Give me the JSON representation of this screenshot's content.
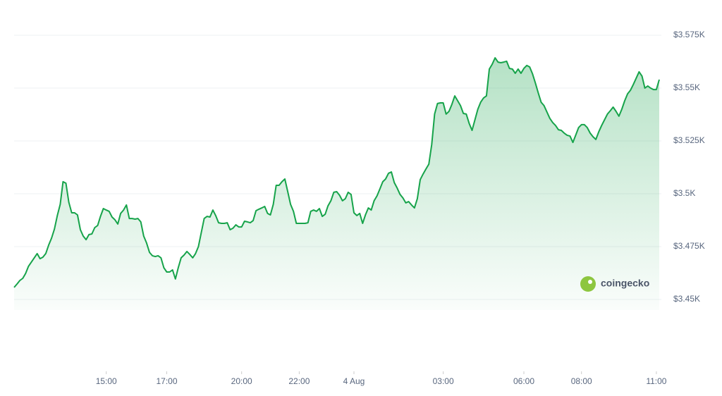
{
  "chart_data": {
    "type": "line",
    "color": "#16a34a",
    "grid": true,
    "watermark": "coingecko",
    "values": [
      3455.7,
      3457.3,
      3459,
      3460,
      3462.3,
      3465.7,
      3467.7,
      3469.7,
      3471.7,
      3469.3,
      3470,
      3471.7,
      3475.7,
      3479,
      3483.3,
      3489.7,
      3495,
      3505.7,
      3505,
      3496,
      3491,
      3491,
      3490,
      3483,
      3480,
      3478.3,
      3480.7,
      3481,
      3484,
      3485,
      3489.3,
      3493,
      3492.3,
      3491.7,
      3489,
      3487.7,
      3485.7,
      3490.7,
      3492.3,
      3494.7,
      3488.3,
      3488.3,
      3488,
      3488.3,
      3486.7,
      3480,
      3476.7,
      3472.3,
      3470.7,
      3470.3,
      3470.7,
      3469.7,
      3465,
      3463,
      3463,
      3464,
      3459.7,
      3465,
      3469.7,
      3471,
      3472.7,
      3471.3,
      3469.7,
      3471.7,
      3475,
      3481.7,
      3488.3,
      3489.3,
      3489,
      3492.3,
      3489.7,
      3486.3,
      3486,
      3486,
      3486.3,
      3483,
      3483.7,
      3485.3,
      3484.3,
      3484.3,
      3487,
      3486.7,
      3486.3,
      3487.3,
      3492,
      3492.7,
      3493.3,
      3494,
      3490.7,
      3490,
      3495,
      3504,
      3504,
      3505.7,
      3507,
      3501,
      3495,
      3491.7,
      3486,
      3486,
      3486,
      3486,
      3486.3,
      3491.7,
      3492.3,
      3491.7,
      3493,
      3489.3,
      3490.3,
      3494.3,
      3496.7,
      3500.7,
      3501,
      3499.3,
      3496.7,
      3497.7,
      3500.7,
      3499.7,
      3491,
      3489.7,
      3490.7,
      3486,
      3490,
      3493.3,
      3492.3,
      3496.7,
      3499,
      3502.3,
      3505.7,
      3507,
      3509.7,
      3510.3,
      3505.3,
      3502.7,
      3499.7,
      3498,
      3495.7,
      3496.3,
      3494.7,
      3493.3,
      3497.7,
      3506.7,
      3509.3,
      3511.7,
      3514,
      3523.3,
      3537.7,
      3542.7,
      3543,
      3543,
      3537.7,
      3539,
      3542.3,
      3546.3,
      3544,
      3541.7,
      3538,
      3537.7,
      3533.3,
      3530,
      3535,
      3540,
      3543.3,
      3545.3,
      3546.3,
      3559,
      3561.3,
      3564.3,
      3562.3,
      3562,
      3562.3,
      3562.7,
      3559.3,
      3559,
      3557,
      3559,
      3557,
      3559.3,
      3560.7,
      3560,
      3556.7,
      3552.3,
      3547.7,
      3543.3,
      3541.7,
      3538.7,
      3535.7,
      3533.7,
      3532.3,
      3530.3,
      3530,
      3528.7,
      3527.7,
      3527.3,
      3524.3,
      3527.7,
      3531.3,
      3532.7,
      3532.7,
      3531.3,
      3528.7,
      3527,
      3525.7,
      3529.3,
      3532.3,
      3535,
      3537.7,
      3539.3,
      3541,
      3539,
      3536.7,
      3540,
      3544,
      3547.3,
      3549,
      3551.7,
      3554.7,
      3557.7,
      3555.7,
      3550,
      3551,
      3550,
      3549.3,
      3549.3,
      3554
    ],
    "ylim": [
      3445,
      3580
    ],
    "yticks": [
      {
        "value": 3450,
        "label": "$3.45K"
      },
      {
        "value": 3475,
        "label": "$3.475K"
      },
      {
        "value": 3500,
        "label": "$3.5K"
      },
      {
        "value": 3525,
        "label": "$3.525K"
      },
      {
        "value": 3550,
        "label": "$3.55K"
      },
      {
        "value": 3575,
        "label": "$3.575K"
      }
    ],
    "xticks": [
      {
        "value": 32,
        "label": "15:00"
      },
      {
        "value": 53,
        "label": "17:00"
      },
      {
        "value": 79,
        "label": "20:00"
      },
      {
        "value": 99,
        "label": "22:00"
      },
      {
        "value": 118,
        "label": "4 Aug"
      },
      {
        "value": 149,
        "label": "03:00"
      },
      {
        "value": 177,
        "label": "06:00"
      },
      {
        "value": 197,
        "label": "08:00"
      },
      {
        "value": 223,
        "label": "11:00"
      }
    ]
  }
}
